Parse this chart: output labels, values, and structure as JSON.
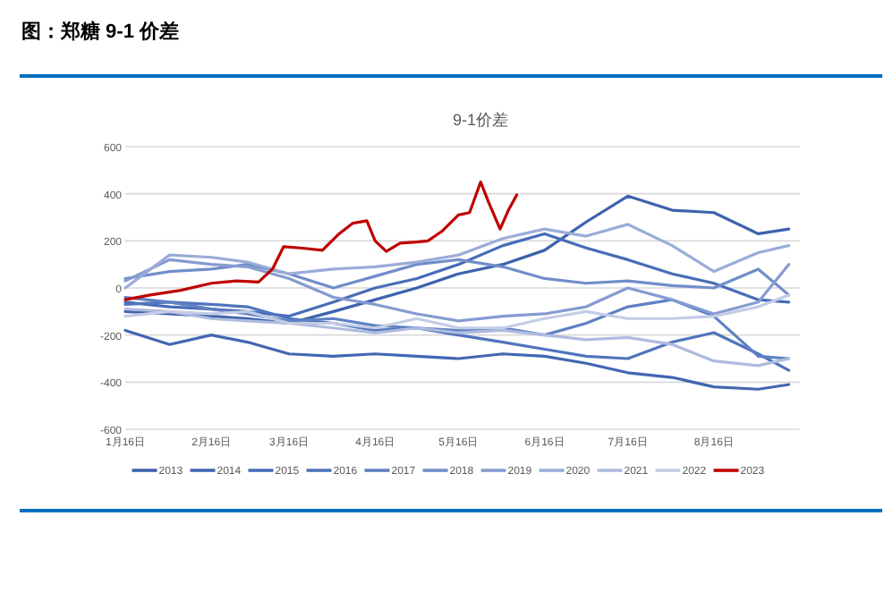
{
  "chart_data": {
    "type": "line",
    "title": "图：郑糖 9-1 价差",
    "subtitle": "9-1价差",
    "x": [
      "--01-16",
      "--02-01",
      "--02-16",
      "--03-01",
      "--03-16",
      "--04-01",
      "--04-16",
      "--05-01",
      "--05-16",
      "--06-01",
      "--06-16",
      "--07-01",
      "--07-16",
      "--08-01",
      "--08-16",
      "--09-01",
      "--09-12"
    ],
    "xlim": [
      "--01-16",
      "--09-16"
    ],
    "xticks": [
      {
        "value": "--01-16",
        "label": "1月16日"
      },
      {
        "value": "--02-16",
        "label": "2月16日"
      },
      {
        "value": "--03-16",
        "label": "3月16日"
      },
      {
        "value": "--04-16",
        "label": "4月16日"
      },
      {
        "value": "--05-16",
        "label": "5月16日"
      },
      {
        "value": "--06-16",
        "label": "6月16日"
      },
      {
        "value": "--07-16",
        "label": "7月16日"
      },
      {
        "value": "--08-16",
        "label": "8月16日"
      }
    ],
    "ylim": [
      -600,
      600
    ],
    "yticks": [
      -600,
      -400,
      -200,
      0,
      200,
      400,
      600
    ],
    "grid": "y",
    "legend": "bottom",
    "marker": "none",
    "line_style": "solid",
    "series": [
      {
        "name": "2013",
        "color": "#3d62ad",
        "values": [
          -100,
          -110,
          -120,
          -130,
          -150,
          -100,
          -50,
          0,
          60,
          100,
          160,
          280,
          390,
          330,
          320,
          230,
          250
        ]
      },
      {
        "name": "2014",
        "color": "#4166b2",
        "values": [
          -180,
          -240,
          -200,
          -230,
          -280,
          -290,
          -280,
          -290,
          -300,
          -280,
          -290,
          -320,
          -360,
          -380,
          -420,
          -430,
          -410
        ]
      },
      {
        "name": "2015",
        "color": "#476cb8",
        "values": [
          -60,
          -80,
          -90,
          -100,
          -120,
          -60,
          0,
          40,
          100,
          180,
          230,
          170,
          120,
          60,
          20,
          -50,
          -60
        ]
      },
      {
        "name": "2016",
        "color": "#5074bd",
        "values": [
          -70,
          -60,
          -70,
          -80,
          -130,
          -150,
          -180,
          -170,
          -200,
          -230,
          -260,
          -290,
          -300,
          -230,
          -190,
          -280,
          -350
        ]
      },
      {
        "name": "2017",
        "color": "#5f80c3",
        "values": [
          -40,
          -60,
          -90,
          -110,
          -140,
          -130,
          -160,
          -170,
          -180,
          -170,
          -200,
          -150,
          -80,
          -50,
          -120,
          -290,
          -300
        ]
      },
      {
        "name": "2018",
        "color": "#718dca",
        "values": [
          40,
          70,
          80,
          100,
          60,
          0,
          50,
          100,
          120,
          90,
          40,
          20,
          30,
          10,
          0,
          80,
          -30
        ]
      },
      {
        "name": "2019",
        "color": "#859bd1",
        "values": [
          30,
          120,
          100,
          90,
          40,
          -40,
          -70,
          -110,
          -140,
          -120,
          -110,
          -80,
          0,
          -50,
          -110,
          -60,
          100
        ]
      },
      {
        "name": "2020",
        "color": "#9aacd8",
        "values": [
          0,
          140,
          130,
          110,
          60,
          80,
          90,
          110,
          140,
          210,
          250,
          220,
          270,
          180,
          70,
          150,
          180
        ]
      },
      {
        "name": "2021",
        "color": "#aebbdf",
        "values": [
          -90,
          -100,
          -130,
          -140,
          -150,
          -170,
          -190,
          -170,
          -190,
          -180,
          -200,
          -220,
          -210,
          -240,
          -310,
          -330,
          -300
        ]
      },
      {
        "name": "2022",
        "color": "#c4cce6",
        "values": [
          -120,
          -100,
          -110,
          -100,
          -150,
          -150,
          -170,
          -130,
          -170,
          -170,
          -130,
          -100,
          -130,
          -130,
          -120,
          -80,
          -30
        ]
      },
      {
        "name": "2023",
        "color": "#c00000",
        "x": [
          "--01-16",
          "--01-25",
          "--02-05",
          "--02-16",
          "--02-25",
          "--03-05",
          "--03-10",
          "--03-14",
          "--03-20",
          "--03-28",
          "--04-03",
          "--04-08",
          "--04-13",
          "--04-16",
          "--04-20",
          "--04-25",
          "--05-01",
          "--05-05",
          "--05-10",
          "--05-16",
          "--05-20",
          "--05-24",
          "--05-27",
          "--05-31",
          "--06-03",
          "--06-06"
        ],
        "values": [
          -50,
          -30,
          -10,
          20,
          30,
          25,
          80,
          175,
          170,
          160,
          230,
          275,
          285,
          200,
          155,
          190,
          195,
          200,
          240,
          310,
          320,
          450,
          360,
          250,
          330,
          395
        ]
      }
    ]
  }
}
